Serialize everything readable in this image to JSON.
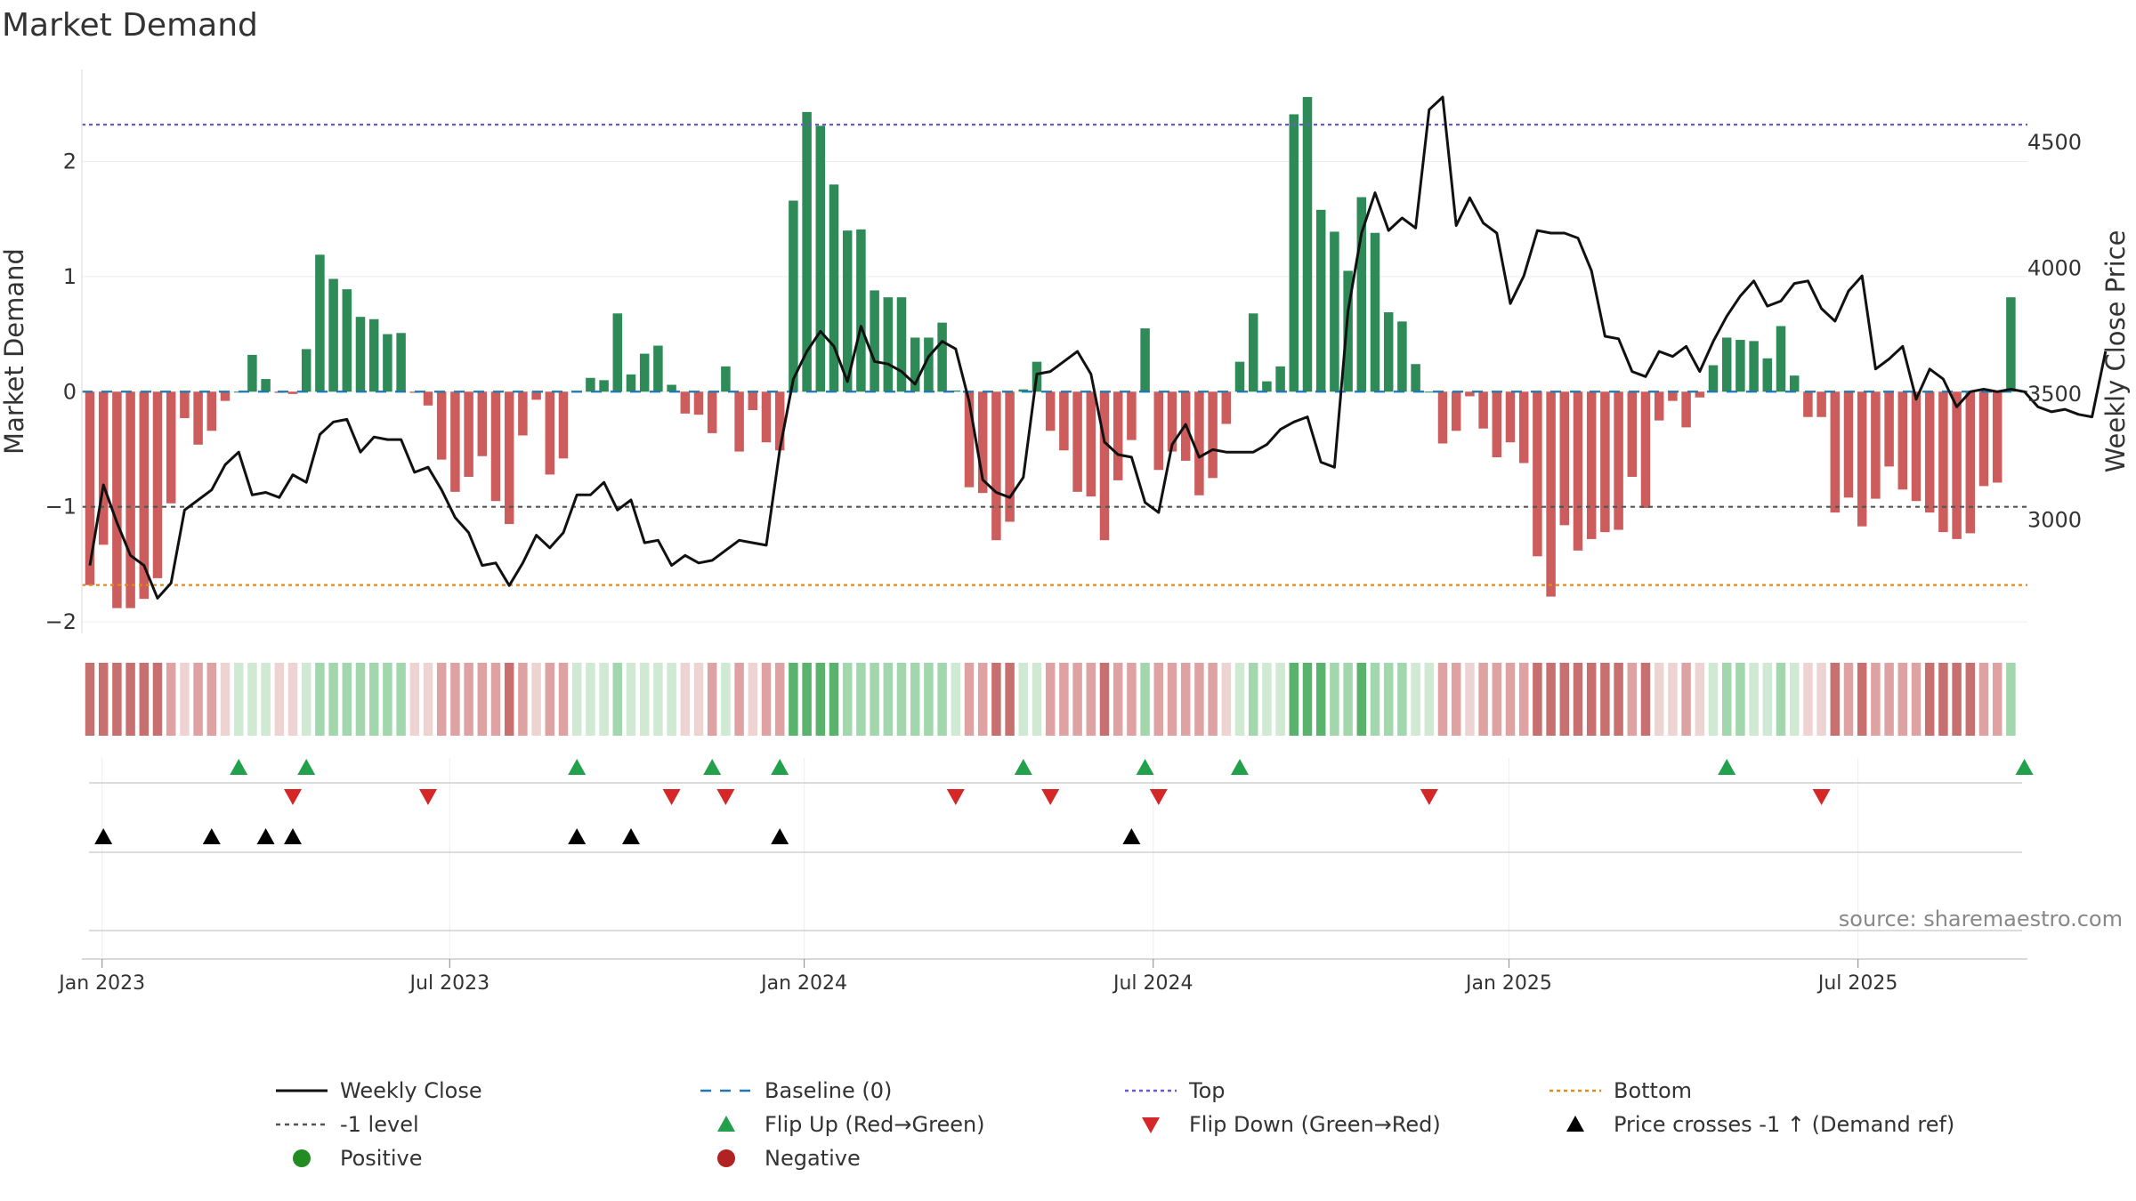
{
  "chart_data": {
    "type": "bar",
    "title": "Market Demand",
    "ylabel": "Market Demand",
    "y2label": "Weekly Close Price",
    "ylim": [
      -2.1,
      2.8
    ],
    "yticks": [
      -2,
      -1,
      0,
      1,
      2
    ],
    "y2lim": [
      2550,
      4790
    ],
    "y2ticks": [
      3000,
      3500,
      4000,
      4500
    ],
    "x_start": "2022-12-26",
    "x_end": "2025-09-15",
    "date_ticks": [
      {
        "label": "Jan 2023",
        "week": 0.9
      },
      {
        "label": "Jul 2023",
        "week": 26.6
      },
      {
        "label": "Jan 2024",
        "week": 52.8
      },
      {
        "label": "Jul 2024",
        "week": 78.6
      },
      {
        "label": "Jan 2025",
        "week": 104.9
      },
      {
        "label": "Jul 2025",
        "week": 130.7
      }
    ],
    "reference_lines": {
      "top": 2.32,
      "bottom": -1.68,
      "level": -1,
      "baseline": 0
    },
    "series": [
      {
        "name": "Market Demand",
        "values": [
          -1.68,
          -1.33,
          -1.88,
          -1.88,
          -1.8,
          -1.62,
          -0.97,
          -0.23,
          -0.46,
          -0.34,
          -0.08,
          0.0,
          0.32,
          0.11,
          -0.01,
          -0.02,
          0.37,
          1.19,
          0.98,
          0.89,
          0.65,
          0.63,
          0.5,
          0.51,
          -0.01,
          -0.12,
          -0.59,
          -0.87,
          -0.74,
          -0.56,
          -0.95,
          -1.15,
          -0.38,
          -0.07,
          -0.72,
          -0.58,
          0.0,
          0.12,
          0.1,
          0.68,
          0.15,
          0.33,
          0.4,
          0.06,
          -0.19,
          -0.2,
          -0.36,
          0.22,
          -0.52,
          -0.16,
          -0.44,
          -0.51,
          1.66,
          2.43,
          2.31,
          1.8,
          1.4,
          1.41,
          0.88,
          0.82,
          0.82,
          0.47,
          0.47,
          0.6,
          0.01,
          -0.83,
          -0.88,
          -1.29,
          -1.13,
          0.02,
          0.26,
          -0.34,
          -0.51,
          -0.87,
          -0.91,
          -1.29,
          -0.77,
          -0.42,
          0.55,
          -0.68,
          -0.52,
          -0.6,
          -0.9,
          -0.75,
          -0.28,
          0.26,
          0.68,
          0.09,
          0.22,
          2.41,
          2.56,
          1.58,
          1.39,
          1.05,
          1.69,
          1.38,
          0.69,
          0.61,
          0.24,
          0.0,
          -0.45,
          -0.34,
          -0.04,
          -0.32,
          -0.57,
          -0.44,
          -0.62,
          -1.43,
          -1.78,
          -1.16,
          -1.38,
          -1.28,
          -1.22,
          -1.2,
          -0.74,
          -1.01,
          -0.25,
          -0.08,
          -0.31,
          -0.05,
          0.23,
          0.47,
          0.45,
          0.44,
          0.29,
          0.57,
          0.14,
          -0.22,
          -0.22,
          -1.05,
          -0.92,
          -1.17,
          -0.93,
          -0.65,
          -0.85,
          -0.95,
          -1.05,
          -1.22,
          -1.28,
          -1.23,
          -0.82,
          -0.79,
          0.82
        ]
      },
      {
        "name": "Weekly Close",
        "axis": "right",
        "values": [
          2820,
          3140,
          2990,
          2860,
          2820,
          2690,
          2750,
          3040,
          3080,
          3120,
          3220,
          3270,
          3100,
          3110,
          3090,
          3180,
          3150,
          3340,
          3390,
          3400,
          3270,
          3330,
          3320,
          3320,
          3190,
          3210,
          3120,
          3010,
          2950,
          2820,
          2830,
          2740,
          2830,
          2940,
          2890,
          2950,
          3100,
          3100,
          3150,
          3040,
          3080,
          2910,
          2920,
          2820,
          2860,
          2830,
          2840,
          2880,
          2920,
          2910,
          2900,
          3280,
          3560,
          3670,
          3750,
          3690,
          3550,
          3770,
          3630,
          3620,
          3590,
          3540,
          3650,
          3710,
          3680,
          3470,
          3160,
          3110,
          3090,
          3170,
          3580,
          3590,
          3630,
          3670,
          3580,
          3310,
          3260,
          3250,
          3070,
          3030,
          3300,
          3380,
          3250,
          3280,
          3270,
          3270,
          3270,
          3300,
          3360,
          3390,
          3410,
          3230,
          3210,
          3830,
          4140,
          4300,
          4150,
          4200,
          4160,
          4630,
          4680,
          4170,
          4280,
          4180,
          4140,
          3860,
          3970,
          4150,
          4140,
          4140,
          4120,
          3990,
          3730,
          3720,
          3590,
          3570,
          3670,
          3650,
          3690,
          3590,
          3710,
          3810,
          3890,
          3950,
          3850,
          3870,
          3940,
          3950,
          3840,
          3790,
          3910,
          3970,
          3600,
          3640,
          3690,
          3480,
          3600,
          3560,
          3450,
          3510,
          3520,
          3510,
          3520,
          3510,
          3450,
          3430,
          3440,
          3420,
          3410,
          3670
        ]
      }
    ],
    "strength_colors": {
      "deep_red": "#c87070",
      "mid_red": "#dfa2a2",
      "light_red": "#eed3d3",
      "light_green": "#cfe9d3",
      "mid_green": "#a2d6ad",
      "deep_green": "#5ab36d"
    },
    "events": {
      "flip_up_weeks": [
        11,
        16,
        36,
        46,
        51,
        69,
        78,
        85,
        121,
        143
      ],
      "flip_down_weeks": [
        15,
        25,
        43,
        47,
        64,
        71,
        79,
        99,
        128
      ],
      "price_cross_weeks": [
        1,
        9,
        13,
        15,
        36,
        40,
        51,
        77
      ]
    },
    "legend": {
      "items": [
        "Weekly Close",
        "Baseline (0)",
        "Top",
        "Bottom",
        "-1 level",
        "Flip Up (Red→Green)",
        "Flip Down (Green→Red)",
        "Price crosses -1 ↑ (Demand ref)",
        "Positive",
        "Negative"
      ]
    },
    "source": "source: sharemaestro.com"
  },
  "colors": {
    "positive_bar": "#2e8b57",
    "negative_bar": "#cd5c5c",
    "price_line": "#111111",
    "baseline": "#1f77b4",
    "top_line": "#6a5acd",
    "bottom_line": "#e08a1a",
    "level_line": "#555555",
    "flip_up": "#22a04b",
    "flip_down": "#d62728",
    "positive_dot": "#228b22",
    "negative_dot": "#b22222",
    "cross_marker": "#000000"
  }
}
